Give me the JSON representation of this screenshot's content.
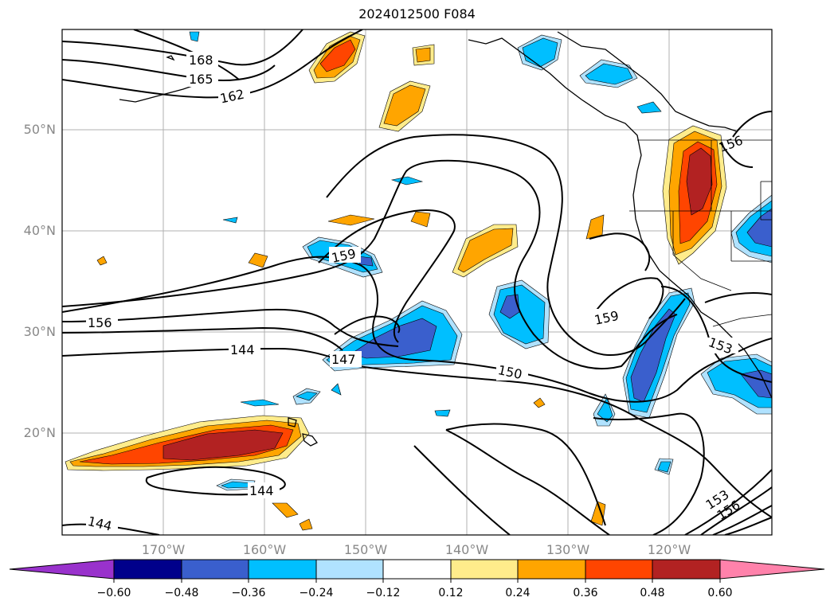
{
  "title": "2024012500 F084",
  "map": {
    "projection": "plate-carree",
    "extent": {
      "lon_min": -180,
      "lon_max": -110,
      "lat_min": 10,
      "lat_max": 60
    },
    "gridlines": true,
    "lat_labels": [
      "50°N",
      "40°N",
      "30°N",
      "20°N"
    ],
    "lon_labels": [
      "170°W",
      "160°W",
      "150°W",
      "140°W",
      "130°W",
      "120°W"
    ],
    "contour_labels": [
      "168",
      "165",
      "162",
      "159",
      "156",
      "144",
      "147",
      "150",
      "159",
      "153",
      "144",
      "144",
      "153",
      "156",
      "156"
    ]
  },
  "colorbar": {
    "ticks": [
      "−0.60",
      "−0.48",
      "−0.36",
      "−0.24",
      "−0.12",
      "0.12",
      "0.24",
      "0.36",
      "0.48",
      "0.60"
    ],
    "colors": [
      "#9932cc",
      "#00008b",
      "#3a5fcd",
      "#00bfff",
      "#b0e2ff",
      "#ffffff",
      "#ffec8b",
      "#ffa500",
      "#ff4500",
      "#b22222",
      "#ff82ab"
    ]
  }
}
